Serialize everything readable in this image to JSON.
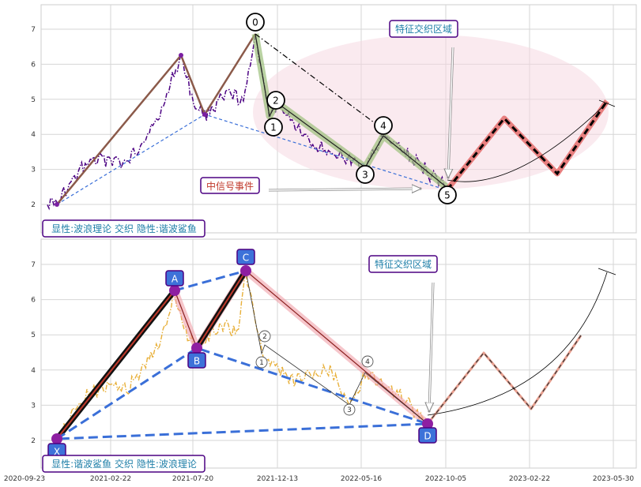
{
  "chart_data": [
    {
      "type": "line",
      "title": "",
      "xlabel": "",
      "ylabel": "",
      "ylim": [
        1.2,
        7.6
      ],
      "yticks": [
        2,
        3,
        4,
        5,
        6,
        7
      ],
      "grid": true,
      "elliott_points": [
        {
          "label": "0",
          "x": "2021-09-30",
          "y": 6.85
        },
        {
          "label": "1",
          "x": "2021-11-03",
          "y": 4.45
        },
        {
          "label": "2",
          "x": "2021-11-05",
          "y": 4.75
        },
        {
          "label": "3",
          "x": "2022-04-15",
          "y": 3.05
        },
        {
          "label": "4",
          "x": "2022-05-01",
          "y": 4.0
        },
        {
          "label": "5",
          "x": "2022-09-25",
          "y": 2.5
        }
      ],
      "harmonic_points": [
        {
          "x": "2020-12-15",
          "y": 2.0
        },
        {
          "x": "2021-06-01",
          "y": 6.25
        },
        {
          "x": "2021-07-15",
          "y": 4.55
        },
        {
          "x": "2021-09-30",
          "y": 6.85
        },
        {
          "x": "2022-09-25",
          "y": 2.5
        }
      ],
      "projection": [
        {
          "x": "2022-09-25",
          "y": 2.5
        },
        {
          "x": "2022-12-05",
          "y": 4.45
        },
        {
          "x": "2023-02-25",
          "y": 2.85
        },
        {
          "x": "2023-04-30",
          "y": 4.9
        }
      ],
      "annotations": {
        "feature_zone": "特征交织区域",
        "mid_signal": "中信号事件",
        "legend": "显性:波浪理论 交织 隐性:谐波鲨鱼"
      }
    },
    {
      "type": "line",
      "title": "",
      "xlabel": "",
      "ylabel": "",
      "ylim": [
        1.2,
        7.6
      ],
      "yticks": [
        2,
        3,
        4,
        5,
        6,
        7
      ],
      "grid": true,
      "x_ticks": [
        "2020-09-23",
        "2021-02-22",
        "2021-07-20",
        "2021-12-13",
        "2022-05-16",
        "2022-10-05",
        "2023-02-22",
        "2023-05-30"
      ],
      "harmonic_points": [
        {
          "label": "X",
          "x": "2020-12-15",
          "y": 2.0
        },
        {
          "label": "A",
          "x": "2021-06-01",
          "y": 6.25
        },
        {
          "label": "B",
          "x": "2021-07-15",
          "y": 4.55
        },
        {
          "label": "C",
          "x": "2021-09-30",
          "y": 6.85
        },
        {
          "label": "D",
          "x": "2022-09-25",
          "y": 2.5
        }
      ],
      "wave_labels": [
        "1",
        "2",
        "3",
        "4"
      ],
      "projection": [
        {
          "x": "2022-09-25",
          "y": 2.5
        },
        {
          "x": "2022-12-05",
          "y": 4.45
        },
        {
          "x": "2023-02-25",
          "y": 2.85
        },
        {
          "x": "2023-04-30",
          "y": 4.9
        }
      ],
      "annotations": {
        "feature_zone": "特征交织区域",
        "legend": "显性:谐波鲨鱼 交织 隐性:波浪理论"
      }
    }
  ]
}
